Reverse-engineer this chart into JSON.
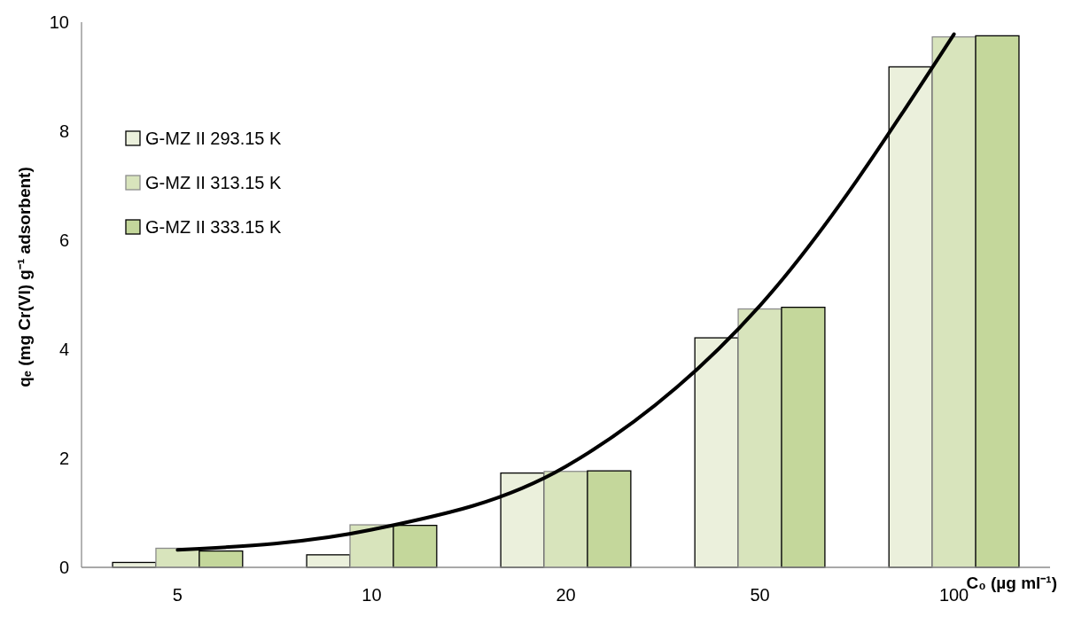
{
  "chart_data": {
    "type": "bar",
    "xlabel": "C₀ (µg ml⁻¹)",
    "ylabel": "qₑ (mg Cr(VI) g⁻¹ adsorbent)",
    "categories": [
      "5",
      "10",
      "20",
      "50",
      "100"
    ],
    "ylim": [
      0,
      10
    ],
    "yticks": [
      0,
      2,
      4,
      6,
      8,
      10
    ],
    "grid": false,
    "legend": "top left",
    "series": [
      {
        "name": "G-MZ II 293.15 K",
        "color": "#ebf0dc",
        "values": [
          0.09,
          0.23,
          1.73,
          4.21,
          9.18
        ]
      },
      {
        "name": "G-MZ II 313.15 K",
        "color": "#d8e4bc",
        "values": [
          0.35,
          0.78,
          1.76,
          4.74,
          9.73
        ]
      },
      {
        "name": "G-MZ II 333.15 K",
        "color": "#c4d79b",
        "values": [
          0.3,
          0.77,
          1.77,
          4.77,
          9.75
        ]
      },
      {
        "type": "line",
        "color": "#000000",
        "line_style": "solid",
        "values": [
          0.32,
          0.69,
          1.85,
          4.8,
          9.78
        ]
      }
    ]
  }
}
